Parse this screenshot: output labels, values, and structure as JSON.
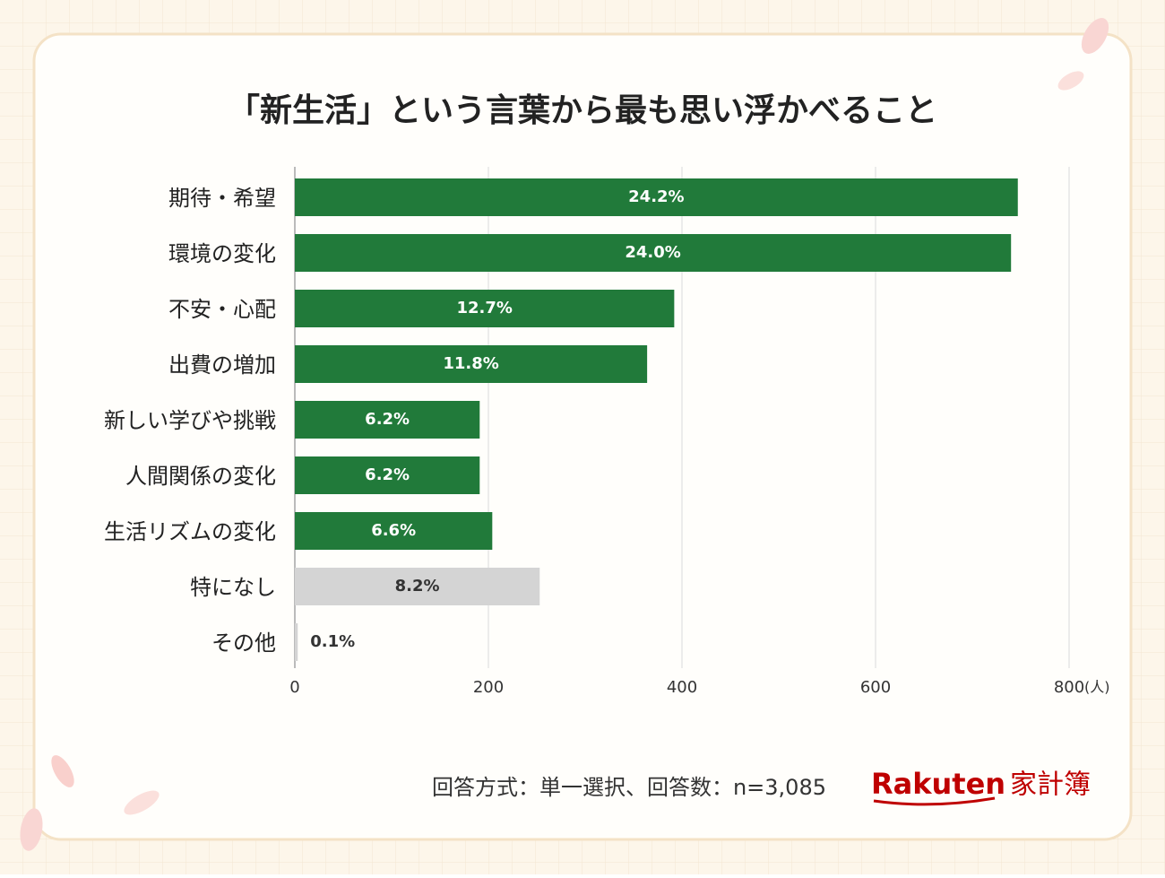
{
  "chart_data": {
    "type": "hbar",
    "title": "「新生活」という言葉から最も思い浮かべること",
    "categories": [
      "期待・希望",
      "環境の変化",
      "不安・心配",
      "出費の増加",
      "新しい学びや挑戦",
      "人間関係の変化",
      "生活リズムの変化",
      "特になし",
      "その他"
    ],
    "values": [
      747,
      740,
      392,
      364,
      191,
      191,
      204,
      253,
      3
    ],
    "value_labels": [
      "24.2%",
      "24.0%",
      "12.7%",
      "11.8%",
      "6.2%",
      "6.2%",
      "6.6%",
      "8.2%",
      "0.1%"
    ],
    "colors": [
      "#217a3a",
      "#217a3a",
      "#217a3a",
      "#217a3a",
      "#217a3a",
      "#217a3a",
      "#217a3a",
      "#d4d4d4",
      "#d4d4d4"
    ],
    "xlim": [
      0,
      800
    ],
    "xticks": [
      0,
      200,
      400,
      600,
      800
    ],
    "x_unit": "(人)",
    "grid": true,
    "note": "回答方式：単一選択、回答数：n=3,085",
    "logo_brand": "Rakuten",
    "logo_product": "家計簿"
  }
}
